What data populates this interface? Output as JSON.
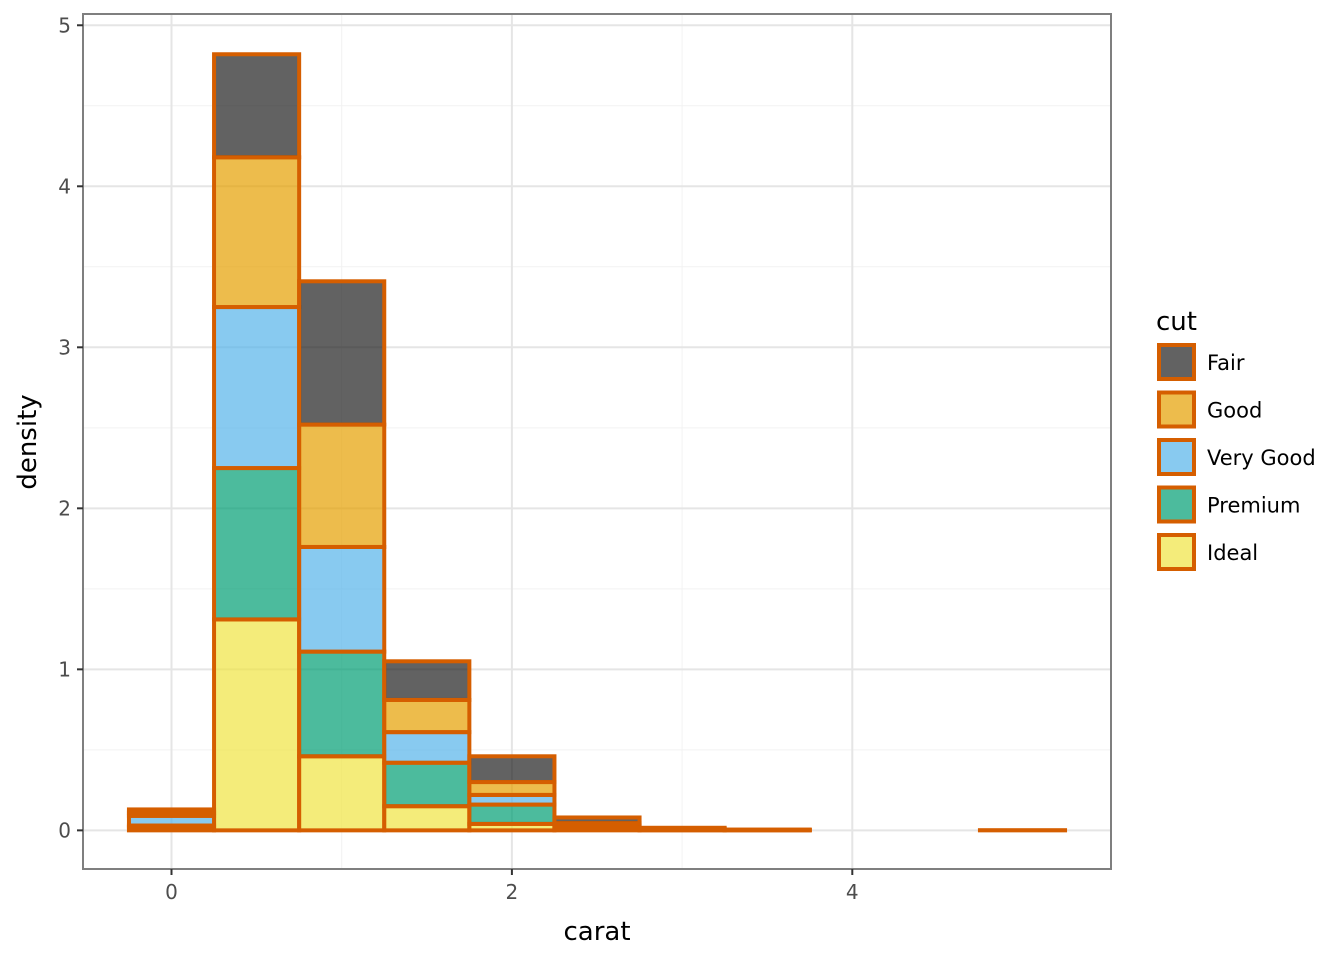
{
  "chart_data": {
    "type": "bar",
    "stacked": true,
    "histogram": true,
    "xlabel": "carat",
    "ylabel": "density",
    "xlim": [
      -0.52,
      5.52
    ],
    "ylim": [
      -0.24,
      5.07
    ],
    "x_ticks": [
      0,
      2,
      4
    ],
    "y_ticks": [
      0,
      1,
      2,
      3,
      4,
      5
    ],
    "x_tick_labels": [
      "0",
      "2",
      "4"
    ],
    "y_tick_labels": [
      "0",
      "1",
      "2",
      "3",
      "4",
      "5"
    ],
    "bin_width": 0.5,
    "bin_starts": [
      -0.25,
      0.25,
      0.75,
      1.25,
      1.75,
      2.25,
      2.75,
      3.25,
      3.75,
      4.25,
      4.75
    ],
    "series": [
      {
        "name": "Ideal",
        "color": "#F0E442",
        "values": [
          0.02,
          1.31,
          0.46,
          0.15,
          0.04,
          0.005,
          0.001,
          0.0,
          0.0,
          0.0,
          0.0
        ]
      },
      {
        "name": "Premium",
        "color": "#009E73",
        "values": [
          0.01,
          0.94,
          0.65,
          0.27,
          0.12,
          0.015,
          0.002,
          0.001,
          0.0,
          0.0,
          0.0
        ]
      },
      {
        "name": "Very Good",
        "color": "#56B4E9",
        "values": [
          0.06,
          1.0,
          0.65,
          0.19,
          0.06,
          0.01,
          0.002,
          0.0,
          0.0,
          0.0,
          0.0
        ]
      },
      {
        "name": "Good",
        "color": "#E69F00",
        "values": [
          0.02,
          0.93,
          0.76,
          0.2,
          0.08,
          0.015,
          0.003,
          0.001,
          0.0,
          0.0,
          0.0
        ]
      },
      {
        "name": "Fair",
        "color": "#1f1f1f",
        "values": [
          0.02,
          0.64,
          0.89,
          0.24,
          0.16,
          0.035,
          0.008,
          0.003,
          0.0,
          0.0,
          0.001
        ]
      }
    ],
    "stroke_color": "#D55E00",
    "legend": {
      "title": "cut",
      "position": "right",
      "order": [
        "Fair",
        "Good",
        "Very Good",
        "Premium",
        "Ideal"
      ]
    },
    "grid": true
  }
}
